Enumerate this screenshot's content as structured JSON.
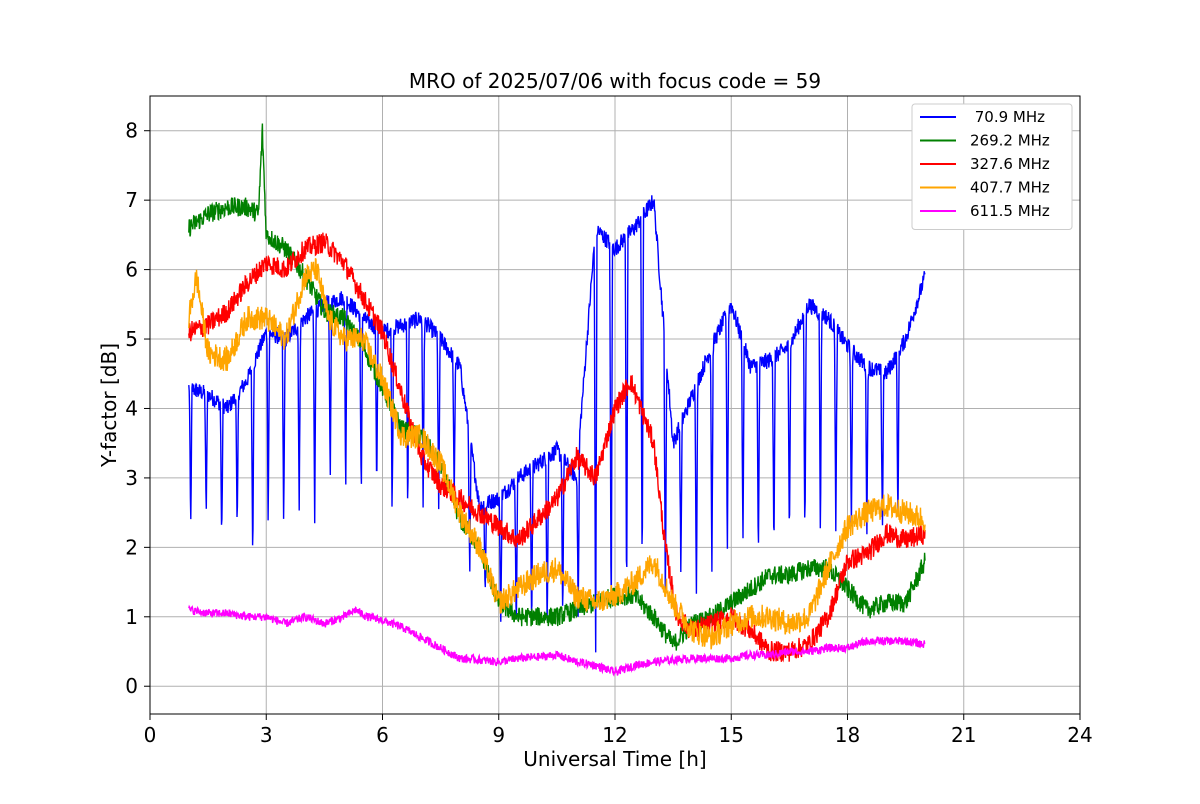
{
  "chart_data": {
    "type": "line",
    "title": "MRO of 2025/07/06 with focus code = 59",
    "xlabel": "Universal Time [h]",
    "ylabel": "Y-factor [dB]",
    "xlim": [
      0,
      24
    ],
    "ylim": [
      -0.4,
      8.5
    ],
    "x_ticks": [
      0,
      3,
      6,
      9,
      12,
      15,
      18,
      21,
      24
    ],
    "y_ticks": [
      0,
      1,
      2,
      3,
      4,
      5,
      6,
      7,
      8
    ],
    "grid": true,
    "legend_position": "top-right",
    "series": [
      {
        "name": " 70.9 MHz",
        "color": "#0000ff",
        "x": [
          1.0,
          1.5,
          2.0,
          2.5,
          3.0,
          3.5,
          4.0,
          4.5,
          5.0,
          5.5,
          6.0,
          6.5,
          7.0,
          7.5,
          8.0,
          8.5,
          9.0,
          9.5,
          10.0,
          10.5,
          11.0,
          11.5,
          12.0,
          12.5,
          13.0,
          13.5,
          14.0,
          14.5,
          15.0,
          15.5,
          16.0,
          16.5,
          17.0,
          17.5,
          18.0,
          18.5,
          19.0,
          19.5,
          20.0
        ],
        "values": [
          4.3,
          4.2,
          4.0,
          4.4,
          5.1,
          5.0,
          5.3,
          5.5,
          5.6,
          5.3,
          5.1,
          5.2,
          5.3,
          5.0,
          4.6,
          2.6,
          2.7,
          3.0,
          3.2,
          3.4,
          3.0,
          6.6,
          6.3,
          6.6,
          7.0,
          3.5,
          4.2,
          4.9,
          5.5,
          4.6,
          4.7,
          4.9,
          5.5,
          5.3,
          4.9,
          4.6,
          4.5,
          5.0,
          5.9
        ],
        "dips_x": [
          1.05,
          1.45,
          1.85,
          2.25,
          2.65,
          3.05,
          3.45,
          3.85,
          4.25,
          4.65,
          5.05,
          5.45,
          5.85,
          6.25,
          6.65,
          7.05,
          7.45,
          7.85,
          8.25,
          8.65,
          9.05,
          9.45,
          9.85,
          10.25,
          10.65,
          11.05,
          11.5,
          11.9,
          12.3,
          12.7,
          13.3,
          13.7,
          14.1,
          14.5,
          14.9,
          15.3,
          15.7,
          16.1,
          16.5,
          16.9,
          17.3,
          17.7,
          18.1,
          18.5,
          18.9,
          19.3
        ],
        "dips_y": [
          2.2,
          2.4,
          2.0,
          2.1,
          1.8,
          2.3,
          2.3,
          2.5,
          2.3,
          2.8,
          2.7,
          2.6,
          2.8,
          2.4,
          2.4,
          2.5,
          2.4,
          2.6,
          1.5,
          1.3,
          0.8,
          0.7,
          0.8,
          0.8,
          0.9,
          1.0,
          0.0,
          0.6,
          1.0,
          1.4,
          1.0,
          1.6,
          1.4,
          1.6,
          1.8,
          2.0,
          1.7,
          1.9,
          2.0,
          2.0,
          2.1,
          2.1,
          2.2,
          2.2,
          2.2,
          2.3
        ],
        "noise": 0.12
      },
      {
        "name": "269.2 MHz",
        "color": "#008000",
        "x": [
          1.0,
          1.5,
          2.0,
          2.5,
          2.8,
          2.9,
          3.0,
          3.5,
          4.0,
          4.5,
          5.0,
          5.5,
          6.0,
          6.5,
          7.0,
          7.5,
          8.0,
          8.5,
          9.0,
          9.5,
          10.0,
          10.5,
          11.0,
          11.5,
          12.0,
          12.5,
          13.0,
          13.5,
          14.0,
          14.5,
          15.0,
          15.5,
          16.0,
          16.5,
          17.0,
          17.5,
          18.0,
          18.5,
          19.0,
          19.5,
          20.0
        ],
        "values": [
          6.6,
          6.8,
          6.9,
          6.9,
          6.8,
          8.0,
          6.5,
          6.3,
          5.9,
          5.4,
          5.3,
          4.9,
          4.3,
          3.7,
          3.6,
          3.2,
          2.4,
          2.0,
          1.2,
          1.0,
          1.0,
          1.0,
          1.1,
          1.2,
          1.3,
          1.3,
          1.0,
          0.6,
          0.9,
          1.0,
          1.2,
          1.4,
          1.6,
          1.6,
          1.7,
          1.7,
          1.4,
          1.1,
          1.2,
          1.2,
          1.8
        ],
        "noise": 0.14
      },
      {
        "name": "327.6 MHz",
        "color": "#ff0000",
        "x": [
          1.0,
          1.5,
          2.0,
          2.5,
          3.0,
          3.5,
          4.0,
          4.5,
          5.0,
          5.5,
          6.0,
          6.5,
          7.0,
          7.5,
          8.0,
          8.5,
          9.0,
          9.5,
          10.0,
          10.5,
          11.0,
          11.5,
          12.0,
          12.4,
          12.8,
          13.0,
          13.3,
          13.6,
          14.0,
          14.5,
          15.0,
          15.5,
          16.0,
          16.5,
          17.0,
          17.5,
          18.0,
          18.5,
          19.0,
          19.5,
          20.0
        ],
        "values": [
          5.1,
          5.2,
          5.4,
          5.8,
          6.1,
          6.0,
          6.3,
          6.4,
          6.1,
          5.6,
          5.1,
          4.2,
          3.3,
          2.9,
          2.7,
          2.5,
          2.3,
          2.1,
          2.4,
          2.7,
          3.3,
          3.0,
          4.0,
          4.4,
          3.8,
          3.5,
          2.0,
          1.0,
          0.8,
          0.9,
          1.0,
          0.8,
          0.5,
          0.5,
          0.6,
          1.0,
          1.8,
          1.9,
          2.2,
          2.1,
          2.2
        ],
        "noise": 0.15
      },
      {
        "name": "407.7 MHz",
        "color": "#ffa500",
        "x": [
          1.0,
          1.2,
          1.5,
          2.0,
          2.5,
          3.0,
          3.5,
          4.0,
          4.3,
          4.6,
          5.0,
          5.5,
          6.0,
          6.5,
          7.0,
          7.5,
          8.0,
          8.5,
          9.0,
          9.5,
          10.0,
          10.5,
          11.0,
          11.5,
          12.0,
          12.5,
          13.0,
          13.5,
          14.0,
          14.5,
          15.0,
          15.5,
          16.0,
          16.5,
          17.0,
          17.5,
          18.0,
          18.5,
          19.0,
          19.5,
          20.0
        ],
        "values": [
          5.3,
          5.9,
          4.8,
          4.7,
          5.3,
          5.3,
          5.0,
          5.9,
          6.0,
          5.3,
          5.0,
          5.0,
          4.4,
          3.6,
          3.6,
          3.2,
          2.5,
          2.0,
          1.2,
          1.4,
          1.6,
          1.7,
          1.3,
          1.2,
          1.3,
          1.5,
          1.8,
          1.2,
          0.8,
          0.7,
          0.9,
          1.0,
          1.0,
          0.9,
          1.0,
          1.7,
          2.3,
          2.5,
          2.6,
          2.5,
          2.4
        ],
        "noise": 0.18
      },
      {
        "name": "611.5 MHz",
        "color": "#ff00ff",
        "x": [
          1.0,
          1.5,
          2.0,
          2.5,
          3.0,
          3.5,
          4.0,
          4.5,
          5.0,
          5.3,
          5.6,
          6.0,
          6.5,
          7.0,
          7.5,
          8.0,
          8.5,
          9.0,
          9.5,
          10.0,
          10.5,
          11.0,
          11.5,
          12.0,
          12.5,
          13.0,
          13.5,
          14.0,
          14.5,
          15.0,
          15.5,
          16.0,
          16.5,
          17.0,
          17.5,
          18.0,
          18.5,
          19.0,
          19.5,
          20.0
        ],
        "values": [
          1.1,
          1.05,
          1.05,
          1.0,
          1.0,
          0.9,
          1.0,
          0.9,
          1.0,
          1.1,
          1.0,
          0.95,
          0.85,
          0.7,
          0.55,
          0.4,
          0.38,
          0.35,
          0.4,
          0.42,
          0.45,
          0.35,
          0.3,
          0.2,
          0.3,
          0.35,
          0.38,
          0.4,
          0.4,
          0.4,
          0.45,
          0.45,
          0.5,
          0.5,
          0.55,
          0.55,
          0.65,
          0.65,
          0.65,
          0.6
        ],
        "noise": 0.06
      }
    ]
  }
}
